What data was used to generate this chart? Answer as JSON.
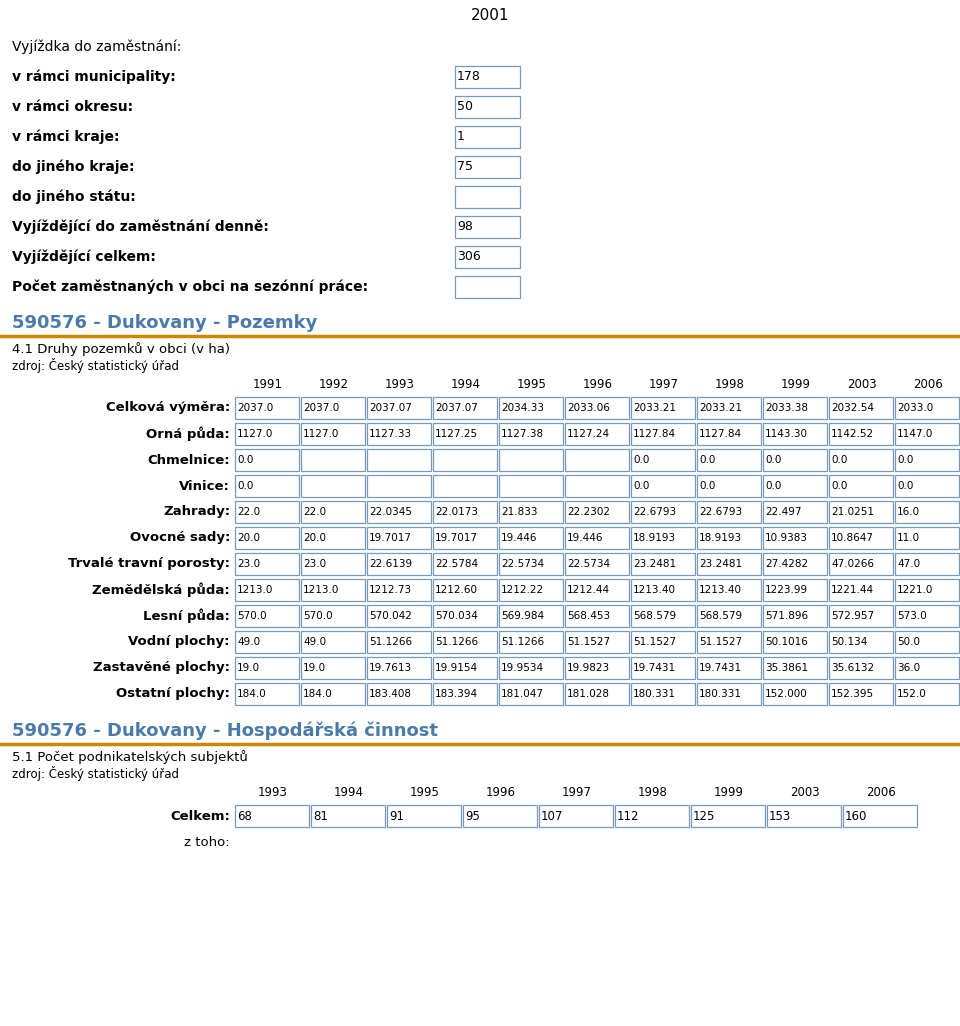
{
  "bg_color": "#ffffff",
  "text_color": "#000000",
  "header_color": "#4a7aaa",
  "orange_line_color": "#cc8800",
  "cell_border_color": "#7799bb",
  "section1_header": "2001",
  "commute_rows": [
    {
      "label": "Vyjíždka do zaměstnání:",
      "value": null,
      "bold": false
    },
    {
      "label": "v rámci municipality:",
      "value": "178",
      "bold": true
    },
    {
      "label": "v rámci okresu:",
      "value": "50",
      "bold": true
    },
    {
      "label": "v rámci kraje:",
      "value": "1",
      "bold": true
    },
    {
      "label": "do jiného kraje:",
      "value": "75",
      "bold": true
    },
    {
      "label": "do jiného státu:",
      "value": "",
      "bold": true
    },
    {
      "label": "Vyjíždějící do zaměstnání denně:",
      "value": "98",
      "bold": true
    },
    {
      "label": "Vyjíždějící celkem:",
      "value": "306",
      "bold": true
    },
    {
      "label": "Počet zaměstnaných v obci na sezónní práce:",
      "value": "",
      "bold": true
    }
  ],
  "section2_title": "590576 - Dukovany - Pozemky",
  "section2_subtitle": "4.1 Druhy pozemků v obci (v ha)",
  "section2_source": "zdroj: Český statistický úřad",
  "land_years": [
    "1991",
    "1992",
    "1993",
    "1994",
    "1995",
    "1996",
    "1997",
    "1998",
    "1999",
    "2003",
    "2006"
  ],
  "land_rows": [
    {
      "label": "Celková výměra:",
      "bold": true,
      "values": [
        "2037.0",
        "2037.0",
        "2037.07",
        "2037.07",
        "2034.33",
        "2033.06",
        "2033.21",
        "2033.21",
        "2033.38",
        "2032.54",
        "2033.0"
      ]
    },
    {
      "label": "Orná půda:",
      "bold": true,
      "values": [
        "1127.0",
        "1127.0",
        "1127.33",
        "1127.25",
        "1127.38",
        "1127.24",
        "1127.84",
        "1127.84",
        "1143.30",
        "1142.52",
        "1147.0"
      ]
    },
    {
      "label": "Chmelnice:",
      "bold": true,
      "values": [
        "0.0",
        "",
        "",
        "",
        "",
        "",
        "0.0",
        "0.0",
        "0.0",
        "0.0",
        "0.0"
      ]
    },
    {
      "label": "Vinice:",
      "bold": true,
      "values": [
        "0.0",
        "",
        "",
        "",
        "",
        "",
        "0.0",
        "0.0",
        "0.0",
        "0.0",
        "0.0"
      ]
    },
    {
      "label": "Zahrady:",
      "bold": true,
      "values": [
        "22.0",
        "22.0",
        "22.0345",
        "22.0173",
        "21.833",
        "22.2302",
        "22.6793",
        "22.6793",
        "22.497",
        "21.0251",
        "16.0"
      ]
    },
    {
      "label": "Ovocné sady:",
      "bold": true,
      "values": [
        "20.0",
        "20.0",
        "19.7017",
        "19.7017",
        "19.446",
        "19.446",
        "18.9193",
        "18.9193",
        "10.9383",
        "10.8647",
        "11.0"
      ]
    },
    {
      "label": "Trvalé travní porosty:",
      "bold": true,
      "values": [
        "23.0",
        "23.0",
        "22.6139",
        "22.5784",
        "22.5734",
        "22.5734",
        "23.2481",
        "23.2481",
        "27.4282",
        "47.0266",
        "47.0"
      ]
    },
    {
      "label": "Zemědělská půda:",
      "bold": true,
      "values": [
        "1213.0",
        "1213.0",
        "1212.73",
        "1212.60",
        "1212.22",
        "1212.44",
        "1213.40",
        "1213.40",
        "1223.99",
        "1221.44",
        "1221.0"
      ]
    },
    {
      "label": "Lesní půda:",
      "bold": true,
      "values": [
        "570.0",
        "570.0",
        "570.042",
        "570.034",
        "569.984",
        "568.453",
        "568.579",
        "568.579",
        "571.896",
        "572.957",
        "573.0"
      ]
    },
    {
      "label": "Vodní plochy:",
      "bold": true,
      "values": [
        "49.0",
        "49.0",
        "51.1266",
        "51.1266",
        "51.1266",
        "51.1527",
        "51.1527",
        "51.1527",
        "50.1016",
        "50.134",
        "50.0"
      ]
    },
    {
      "label": "Zastavěné plochy:",
      "bold": true,
      "values": [
        "19.0",
        "19.0",
        "19.7613",
        "19.9154",
        "19.9534",
        "19.9823",
        "19.7431",
        "19.7431",
        "35.3861",
        "35.6132",
        "36.0"
      ]
    },
    {
      "label": "Ostatní plochy:",
      "bold": true,
      "values": [
        "184.0",
        "184.0",
        "183.408",
        "183.394",
        "181.047",
        "181.028",
        "180.331",
        "180.331",
        "152.000",
        "152.395",
        "152.0"
      ]
    }
  ],
  "section3_title": "590576 - Dukovany - Hospodářská činnost",
  "section3_subtitle": "5.1 Počet podnikatelských subjektů",
  "section3_source": "zdroj: Český statistický úřad",
  "business_years": [
    "1993",
    "1994",
    "1995",
    "1996",
    "1997",
    "1998",
    "1999",
    "2003",
    "2006"
  ],
  "business_rows": [
    {
      "label": "Celkem:",
      "bold": true,
      "values": [
        "68",
        "81",
        "91",
        "95",
        "107",
        "112",
        "125",
        "153",
        "160"
      ]
    },
    {
      "label": "z toho:",
      "bold": false,
      "values": []
    }
  ]
}
